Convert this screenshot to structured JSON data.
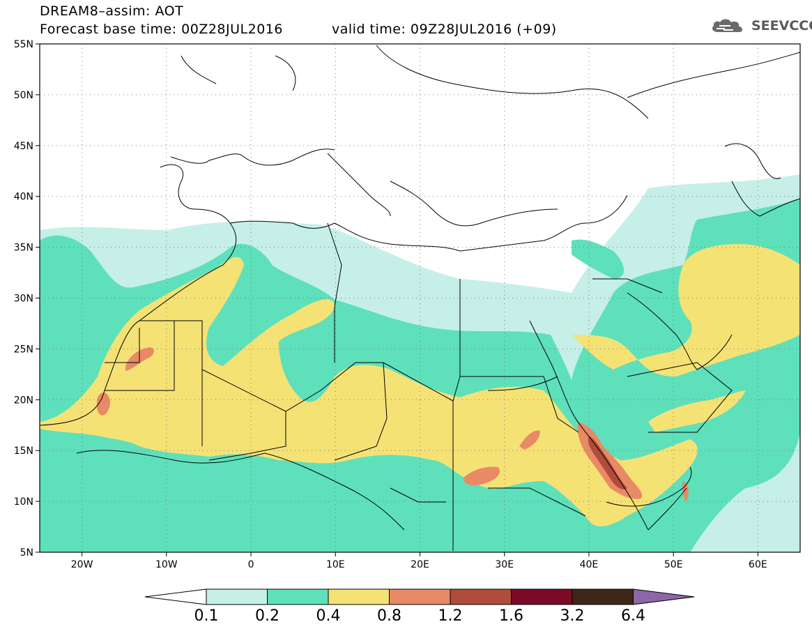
{
  "title": {
    "line1": "DREAM8–assim: AOT",
    "line2": "Forecast base time: 00Z28JUL2016",
    "valid": "valid time: 09Z28JUL2016 (+09)"
  },
  "logo": {
    "text": "SEEVCCC",
    "icon": "cloud-icon"
  },
  "map": {
    "lat_labels": [
      "55N",
      "50N",
      "45N",
      "40N",
      "35N",
      "30N",
      "25N",
      "20N",
      "15N",
      "10N",
      "5N"
    ],
    "lon_labels": [
      "20W",
      "10W",
      "0",
      "10E",
      "20E",
      "30E",
      "40E",
      "50E",
      "60E"
    ],
    "lat_range": [
      5,
      55
    ],
    "lon_range": [
      -25,
      65
    ],
    "grid": "dotted"
  },
  "colorbar": {
    "labels": [
      "0.1",
      "0.2",
      "0.4",
      "0.8",
      "1.2",
      "1.6",
      "3.2",
      "6.4"
    ],
    "colors": {
      "c1": "#c6efe8",
      "c2": "#5ee0bb",
      "c3": "#f5e275",
      "c4": "#e88a65",
      "c5": "#b04c3c",
      "c6": "#7a0a25",
      "c7": "#3f2618",
      "c8": "#8c66a8"
    }
  },
  "colors": {
    "background": "#ffffff",
    "border": "#000000"
  }
}
